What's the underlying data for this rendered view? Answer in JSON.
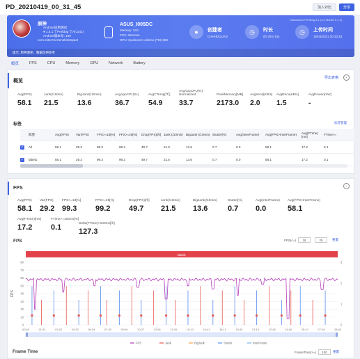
{
  "app": {
    "title": "PD_20210419_00_31_45",
    "btn_compare": "加入对比",
    "btn_share": "分享"
  },
  "hero": {
    "user_name": "原神",
    "user_lines": [
      "Android应用测试",
      "● 1.4.1  丁Perfdog  丁A(1141)",
      "Android版本号: 100",
      "com.miHoYo.GenshinImpact"
    ],
    "device_name": "ASUS_I005DC",
    "device_lines": [
      "Memory: 15G",
      "CPU: Wenone",
      "GPU: Qualcomm Adreno (TM) 660"
    ],
    "creator_label": "创建者",
    "creator_value": "CHHHDUUAD",
    "duration_label": "时长",
    "duration_value": "0h 30m 10s",
    "upload_label": "上传时间",
    "upload_value": "15/04/2021 00:33:18",
    "notice": "提示: 原神测评，数据仅供参考",
    "version": "Standalone PerfDog 5.1 (4.0 Mobile 5.1.4)"
  },
  "tabs": [
    "概览",
    "FPS",
    "CPU",
    "Memory",
    "GPU",
    "Network",
    "Battery"
  ],
  "overview": {
    "title": "概览",
    "export": "导出表格",
    "metrics": [
      {
        "label": "Avg(FPS)",
        "value": "58.1"
      },
      {
        "label": "Jank(/10min)",
        "value": "21.5"
      },
      {
        "label": "BigJank(/10min)",
        "value": "13.6"
      },
      {
        "label": "AvgAppCPU[%]",
        "value": "36.7"
      },
      {
        "label": "AvgCTemp[℃]",
        "value": "54.9"
      },
      {
        "label": "AvgAppCPU[%] Normalized",
        "value": "33.7"
      },
      {
        "label": "PeakMemory[MB]",
        "value": "2173.0"
      },
      {
        "label": "AvgSend[KB/s]",
        "value": "2.0"
      },
      {
        "label": "AvgRecv[KB/s]",
        "value": "1.5"
      },
      {
        "label": "AvgPower[mW]",
        "value": "-"
      }
    ],
    "table_title": "标签",
    "table_link": "标签管理",
    "columns": [
      "标签",
      "Avg(FPS)",
      "Var(FPS)",
      "FPS>=18[%]",
      "FPS>=25[%]",
      "Drop(FPS)[/h]",
      "Jank (/10min)",
      "BigJank (/10min)",
      "Stutter[%]",
      "Avg(InterFrame)",
      "Avg(FPS>InterFrame)",
      "Avg(FTime)[ms]",
      "FTime>="
    ],
    "rows": [
      [
        "All",
        "58.1",
        "29.2",
        "99.3",
        "99.2",
        "49.7",
        "21.5",
        "13.6",
        "0.7",
        "0.0",
        "58.1",
        "17.2",
        "0.1"
      ],
      [
        "label1",
        "58.1",
        "29.2",
        "99.3",
        "99.2",
        "49.7",
        "21.5",
        "13.6",
        "0.7",
        "0.0",
        "58.1",
        "17.2",
        "0.1"
      ]
    ]
  },
  "fps": {
    "title": "FPS",
    "metrics": [
      {
        "label": "Avg(FPS)",
        "value": "58.1"
      },
      {
        "label": "Var(FPS)",
        "value": "29.2"
      },
      {
        "label": "FPS>=18[%]",
        "value": "99.3"
      },
      {
        "label": "FPS>=25[%]",
        "value": "99.2"
      },
      {
        "label": "Drop(FPS)[/h]",
        "value": "49.7"
      },
      {
        "label": "Jank(/10min)",
        "value": "21.5"
      },
      {
        "label": "BigJank(/10min)",
        "value": "13.6"
      },
      {
        "label": "Stutter[%]",
        "value": "0.7"
      },
      {
        "label": "Avg(InterFrame)",
        "value": "0.0"
      },
      {
        "label": "Avg(FPS>InterFrame)",
        "value": "58.1"
      },
      {
        "label": "Avg(FTime)[ms]",
        "value": "17.2"
      },
      {
        "label": "FTime>=100ms[%]",
        "value": "0.1"
      },
      {
        "label": "Delta(FTime)>100ms[/h]",
        "value": "127.3"
      }
    ],
    "chart_title": "FPS",
    "ctrl_label": "FPS(<=)",
    "ctrl_v1": "18",
    "ctrl_v2": "25",
    "ctrl_reset": "重置"
  },
  "chart_data": {
    "type": "line",
    "title": "FPS",
    "label_bar": "label1",
    "ylabel": "FPS",
    "ylim": [
      0,
      80
    ],
    "yticks": [
      0,
      10,
      20,
      30,
      40,
      50,
      60,
      70,
      80
    ],
    "y2ticks": [
      0,
      1,
      2,
      3
    ],
    "xticks": [
      "00:00",
      "01:31",
      "03:02",
      "04:33",
      "06:04",
      "07:35",
      "09:06",
      "10:37",
      "12:08",
      "13:39",
      "15:10",
      "16:41",
      "18:12",
      "19:43",
      "21:14",
      "22:45",
      "24:16",
      "25:47",
      "27:18",
      "28:49"
    ],
    "legend": [
      "FPS",
      "Jank",
      "BigJank",
      "Stutter",
      "InterFrame"
    ],
    "colors": {
      "fps": "#b53db7",
      "jank": "#e8564f",
      "bigjank": "#f4a44a",
      "stutter": "#5b8ff0",
      "interframe": "#7db7e8"
    },
    "fps_baseline": 58,
    "fps_dips": [
      {
        "t": 0.03,
        "v": 20
      },
      {
        "t": 0.12,
        "v": 42
      },
      {
        "t": 0.22,
        "v": 50
      },
      {
        "t": 0.36,
        "v": 48
      },
      {
        "t": 0.45,
        "v": 33
      },
      {
        "t": 0.52,
        "v": 50
      },
      {
        "t": 0.6,
        "v": 46
      },
      {
        "t": 0.68,
        "v": 38
      },
      {
        "t": 0.76,
        "v": 52
      },
      {
        "t": 0.84,
        "v": 8
      },
      {
        "t": 0.95,
        "v": 45
      }
    ]
  },
  "frame_time": {
    "title": "Frame Time",
    "ctrl_label": "FrameTime(>=)",
    "ctrl_value": "100",
    "ctrl_reset": "重置"
  }
}
